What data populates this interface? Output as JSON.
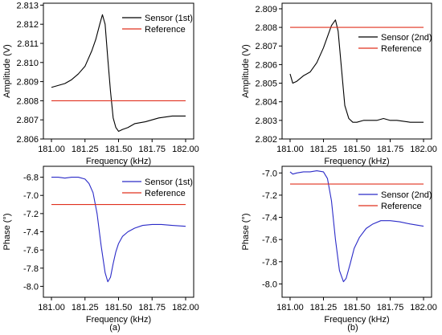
{
  "chart_data": [
    {
      "id": "a_amp",
      "type": "line",
      "xlabel": "Frequency (kHz)",
      "ylabel": "Amplitude (V)",
      "xlim": [
        180.94,
        182.06
      ],
      "ylim": [
        2.806,
        2.8131
      ],
      "xticks": [
        181.0,
        181.25,
        181.5,
        181.75,
        182.0
      ],
      "xtick_labels": [
        "181.00",
        "181.25",
        "181.50",
        "181.75",
        "182.00"
      ],
      "yticks": [
        2.806,
        2.807,
        2.808,
        2.809,
        2.81,
        2.811,
        2.812,
        2.813
      ],
      "ytick_labels": [
        "2.806",
        "2.807",
        "2.808",
        "2.809",
        "2.810",
        "2.811",
        "2.812",
        "2.813"
      ],
      "legend_position": "top-right",
      "series": [
        {
          "name": "Sensor (1st)",
          "color": "#000000",
          "x": [
            181.0,
            181.05,
            181.1,
            181.15,
            181.2,
            181.25,
            181.3,
            181.33,
            181.36,
            181.38,
            181.4,
            181.42,
            181.44,
            181.46,
            181.48,
            181.5,
            181.53,
            181.57,
            181.62,
            181.7,
            181.8,
            181.9,
            182.0
          ],
          "y": [
            2.8087,
            2.8088,
            2.8089,
            2.8091,
            2.8094,
            2.8098,
            2.8106,
            2.8112,
            2.812,
            2.8125,
            2.812,
            2.8102,
            2.8085,
            2.8071,
            2.8066,
            2.8064,
            2.8065,
            2.8066,
            2.8068,
            2.8069,
            2.8071,
            2.8072,
            2.8072
          ]
        },
        {
          "name": "Reference",
          "color": "#e0301e",
          "x": [
            181.0,
            182.0
          ],
          "y": [
            2.808,
            2.808
          ]
        }
      ]
    },
    {
      "id": "b_amp",
      "type": "line",
      "xlabel": "Frequency (kHz)",
      "ylabel": "Amplitude (V)",
      "xlim": [
        180.94,
        182.06
      ],
      "ylim": [
        2.802,
        2.8093
      ],
      "xticks": [
        181.0,
        181.25,
        181.5,
        181.75,
        182.0
      ],
      "xtick_labels": [
        "181.00",
        "181.25",
        "181.50",
        "181.75",
        "182.00"
      ],
      "yticks": [
        2.802,
        2.803,
        2.804,
        2.805,
        2.806,
        2.807,
        2.808,
        2.809
      ],
      "ytick_labels": [
        "2.802",
        "2.803",
        "2.804",
        "2.805",
        "2.806",
        "2.807",
        "2.808",
        "2.809"
      ],
      "legend_position": "top-right",
      "series": [
        {
          "name": "Sensor (2nd)",
          "color": "#000000",
          "x": [
            181.0,
            181.02,
            181.05,
            181.1,
            181.15,
            181.2,
            181.25,
            181.28,
            181.31,
            181.34,
            181.36,
            181.38,
            181.41,
            181.44,
            181.47,
            181.5,
            181.55,
            181.6,
            181.65,
            181.7,
            181.75,
            181.8,
            181.9,
            182.0
          ],
          "y": [
            2.8055,
            2.805,
            2.8051,
            2.8054,
            2.8056,
            2.8061,
            2.8069,
            2.8075,
            2.8081,
            2.8084,
            2.8078,
            2.8062,
            2.8038,
            2.8031,
            2.8029,
            2.8029,
            2.803,
            2.803,
            2.803,
            2.8031,
            2.803,
            2.803,
            2.8029,
            2.8029
          ]
        },
        {
          "name": "Reference",
          "color": "#e0301e",
          "x": [
            181.0,
            182.0
          ],
          "y": [
            2.808,
            2.808
          ]
        }
      ]
    },
    {
      "id": "a_phase",
      "type": "line",
      "xlabel": "Frequency (kHz)",
      "ylabel": "Phase (°)",
      "xlim": [
        180.94,
        182.06
      ],
      "ylim": [
        -8.12,
        -6.68
      ],
      "xticks": [
        181.0,
        181.25,
        181.5,
        181.75,
        182.0
      ],
      "xtick_labels": [
        "181.00",
        "181.25",
        "181.50",
        "181.75",
        "182.00"
      ],
      "yticks": [
        -6.8,
        -7.0,
        -7.2,
        -7.4,
        -7.6,
        -7.8,
        -8.0
      ],
      "ytick_labels": [
        "-6.8",
        "-7.0",
        "-7.2",
        "-7.4",
        "-7.6",
        "-7.8",
        "-8.0"
      ],
      "legend_position": "top-right",
      "series": [
        {
          "name": "Sensor (1st)",
          "color": "#2b2bc8",
          "x": [
            181.0,
            181.05,
            181.1,
            181.15,
            181.2,
            181.25,
            181.28,
            181.31,
            181.34,
            181.37,
            181.4,
            181.42,
            181.44,
            181.46,
            181.48,
            181.5,
            181.53,
            181.57,
            181.62,
            181.68,
            181.75,
            181.82,
            181.9,
            182.0
          ],
          "y": [
            -6.8,
            -6.8,
            -6.81,
            -6.8,
            -6.8,
            -6.82,
            -6.87,
            -6.97,
            -7.2,
            -7.55,
            -7.85,
            -7.95,
            -7.9,
            -7.75,
            -7.62,
            -7.53,
            -7.45,
            -7.4,
            -7.36,
            -7.33,
            -7.32,
            -7.32,
            -7.33,
            -7.34
          ]
        },
        {
          "name": "Reference",
          "color": "#e0301e",
          "x": [
            181.0,
            182.0
          ],
          "y": [
            -7.1,
            -7.1
          ]
        }
      ]
    },
    {
      "id": "b_phase",
      "type": "line",
      "xlabel": "Frequency (kHz)",
      "ylabel": "Phase (°)",
      "xlim": [
        180.94,
        182.06
      ],
      "ylim": [
        -8.12,
        -6.94
      ],
      "xticks": [
        181.0,
        181.25,
        181.5,
        181.75,
        182.0
      ],
      "xtick_labels": [
        "181.00",
        "181.25",
        "181.50",
        "181.75",
        "182.00"
      ],
      "yticks": [
        -7.0,
        -7.2,
        -7.4,
        -7.6,
        -7.8,
        -8.0
      ],
      "ytick_labels": [
        "-7.0",
        "-7.2",
        "-7.4",
        "-7.6",
        "-7.8",
        "-8.0"
      ],
      "legend_position": "top-right",
      "series": [
        {
          "name": "Sensor (2nd)",
          "color": "#2b2bc8",
          "x": [
            181.0,
            181.02,
            181.05,
            181.1,
            181.15,
            181.2,
            181.25,
            181.28,
            181.31,
            181.34,
            181.37,
            181.4,
            181.42,
            181.45,
            181.48,
            181.52,
            181.57,
            181.62,
            181.68,
            181.75,
            181.82,
            181.9,
            182.0
          ],
          "y": [
            -6.99,
            -7.01,
            -7.0,
            -6.99,
            -6.99,
            -6.98,
            -6.99,
            -7.05,
            -7.25,
            -7.6,
            -7.88,
            -7.98,
            -7.95,
            -7.82,
            -7.68,
            -7.58,
            -7.5,
            -7.46,
            -7.43,
            -7.43,
            -7.44,
            -7.46,
            -7.48
          ]
        },
        {
          "name": "Reference",
          "color": "#e0301e",
          "x": [
            181.0,
            182.0
          ],
          "y": [
            -7.1,
            -7.1
          ]
        }
      ]
    }
  ],
  "captions": {
    "a": "(a)",
    "b": "(b)"
  }
}
